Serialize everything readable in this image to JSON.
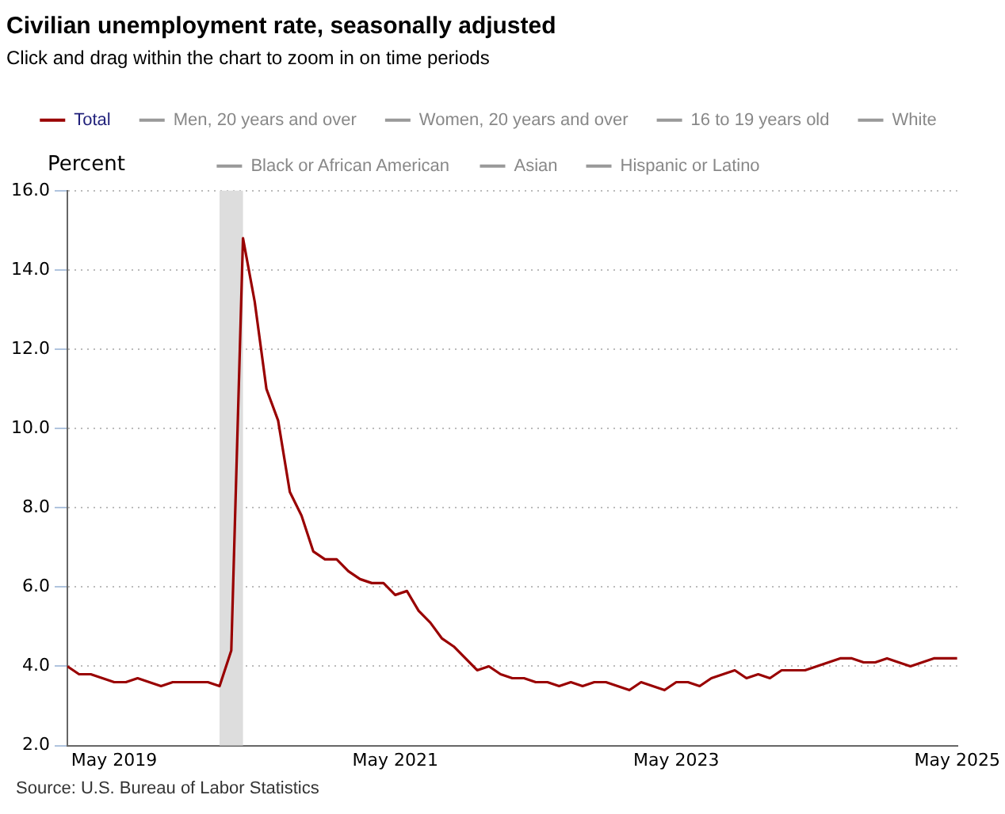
{
  "chart_data": {
    "type": "line",
    "title": "Civilian unemployment rate, seasonally adjusted",
    "subtitle": "Click and drag within the chart to zoom in on time periods",
    "ylabel": "Percent",
    "x": [
      "2019-01",
      "2019-02",
      "2019-03",
      "2019-04",
      "2019-05",
      "2019-06",
      "2019-07",
      "2019-08",
      "2019-09",
      "2019-10",
      "2019-11",
      "2019-12",
      "2020-01",
      "2020-02",
      "2020-03",
      "2020-04",
      "2020-05",
      "2020-06",
      "2020-07",
      "2020-08",
      "2020-09",
      "2020-10",
      "2020-11",
      "2020-12",
      "2021-01",
      "2021-02",
      "2021-03",
      "2021-04",
      "2021-05",
      "2021-06",
      "2021-07",
      "2021-08",
      "2021-09",
      "2021-10",
      "2021-11",
      "2021-12",
      "2022-01",
      "2022-02",
      "2022-03",
      "2022-04",
      "2022-05",
      "2022-06",
      "2022-07",
      "2022-08",
      "2022-09",
      "2022-10",
      "2022-11",
      "2022-12",
      "2023-01",
      "2023-02",
      "2023-03",
      "2023-04",
      "2023-05",
      "2023-06",
      "2023-07",
      "2023-08",
      "2023-09",
      "2023-10",
      "2023-11",
      "2023-12",
      "2024-01",
      "2024-02",
      "2024-03",
      "2024-04",
      "2024-05",
      "2024-06",
      "2024-07",
      "2024-08",
      "2024-09",
      "2024-10",
      "2024-11",
      "2024-12",
      "2025-01",
      "2025-02",
      "2025-03",
      "2025-04",
      "2025-05"
    ],
    "series": [
      {
        "name": "Total",
        "color": "#990000",
        "values": [
          4.0,
          3.8,
          3.8,
          3.7,
          3.6,
          3.6,
          3.7,
          3.6,
          3.5,
          3.6,
          3.6,
          3.6,
          3.6,
          3.5,
          4.4,
          14.8,
          13.2,
          11.0,
          10.2,
          8.4,
          7.8,
          6.9,
          6.7,
          6.7,
          6.4,
          6.2,
          6.1,
          6.1,
          5.8,
          5.9,
          5.4,
          5.1,
          4.7,
          4.5,
          4.2,
          3.9,
          4.0,
          3.8,
          3.7,
          3.7,
          3.6,
          3.6,
          3.5,
          3.6,
          3.5,
          3.6,
          3.6,
          3.5,
          3.4,
          3.6,
          3.5,
          3.4,
          3.6,
          3.6,
          3.5,
          3.7,
          3.8,
          3.9,
          3.7,
          3.8,
          3.7,
          3.9,
          3.9,
          3.9,
          4.0,
          4.1,
          4.2,
          4.2,
          4.1,
          4.1,
          4.2,
          4.1,
          4.0,
          4.1,
          4.2,
          4.2,
          4.2
        ]
      },
      {
        "name": "Men, 20 years and over",
        "color": "#999999",
        "values": [
          null,
          null,
          null,
          null,
          null,
          null,
          null,
          null,
          null,
          null,
          null,
          null,
          null,
          null,
          null,
          null,
          null,
          null,
          null,
          null,
          null,
          null,
          null,
          null,
          null,
          null,
          null,
          null,
          null,
          null,
          null,
          null,
          null,
          null,
          null,
          null,
          null,
          null,
          null,
          null,
          null,
          null,
          null,
          null,
          null,
          null,
          null,
          null,
          null,
          null,
          null,
          null,
          null,
          null,
          null,
          null,
          null,
          null,
          null,
          null,
          null,
          null,
          null,
          null,
          null,
          null,
          null,
          null,
          null,
          null,
          null,
          null,
          null,
          null,
          null,
          null,
          null
        ]
      },
      {
        "name": "Women, 20 years and over",
        "color": "#999999",
        "values": [
          null,
          null,
          null,
          null,
          null,
          null,
          null,
          null,
          null,
          null,
          null,
          null,
          null,
          null,
          null,
          null,
          null,
          null,
          null,
          null,
          null,
          null,
          null,
          null,
          null,
          null,
          null,
          null,
          null,
          null,
          null,
          null,
          null,
          null,
          null,
          null,
          null,
          null,
          null,
          null,
          null,
          null,
          null,
          null,
          null,
          null,
          null,
          null,
          null,
          null,
          null,
          null,
          null,
          null,
          null,
          null,
          null,
          null,
          null,
          null,
          null,
          null,
          null,
          null,
          null,
          null,
          null,
          null,
          null,
          null,
          null,
          null,
          null,
          null,
          null,
          null,
          null
        ]
      },
      {
        "name": "16 to 19 years old",
        "color": "#999999",
        "values": [
          null,
          null,
          null,
          null,
          null,
          null,
          null,
          null,
          null,
          null,
          null,
          null,
          null,
          null,
          null,
          null,
          null,
          null,
          null,
          null,
          null,
          null,
          null,
          null,
          null,
          null,
          null,
          null,
          null,
          null,
          null,
          null,
          null,
          null,
          null,
          null,
          null,
          null,
          null,
          null,
          null,
          null,
          null,
          null,
          null,
          null,
          null,
          null,
          null,
          null,
          null,
          null,
          null,
          null,
          null,
          null,
          null,
          null,
          null,
          null,
          null,
          null,
          null,
          null,
          null,
          null,
          null,
          null,
          null,
          null,
          null,
          null,
          null,
          null,
          null,
          null,
          null
        ]
      },
      {
        "name": "White",
        "color": "#999999",
        "values": [
          null,
          null,
          null,
          null,
          null,
          null,
          null,
          null,
          null,
          null,
          null,
          null,
          null,
          null,
          null,
          null,
          null,
          null,
          null,
          null,
          null,
          null,
          null,
          null,
          null,
          null,
          null,
          null,
          null,
          null,
          null,
          null,
          null,
          null,
          null,
          null,
          null,
          null,
          null,
          null,
          null,
          null,
          null,
          null,
          null,
          null,
          null,
          null,
          null,
          null,
          null,
          null,
          null,
          null,
          null,
          null,
          null,
          null,
          null,
          null,
          null,
          null,
          null,
          null,
          null,
          null,
          null,
          null,
          null,
          null,
          null,
          null,
          null,
          null,
          null,
          null,
          null
        ]
      },
      {
        "name": "Black or African American",
        "color": "#999999",
        "values": [
          null,
          null,
          null,
          null,
          null,
          null,
          null,
          null,
          null,
          null,
          null,
          null,
          null,
          null,
          null,
          null,
          null,
          null,
          null,
          null,
          null,
          null,
          null,
          null,
          null,
          null,
          null,
          null,
          null,
          null,
          null,
          null,
          null,
          null,
          null,
          null,
          null,
          null,
          null,
          null,
          null,
          null,
          null,
          null,
          null,
          null,
          null,
          null,
          null,
          null,
          null,
          null,
          null,
          null,
          null,
          null,
          null,
          null,
          null,
          null,
          null,
          null,
          null,
          null,
          null,
          null,
          null,
          null,
          null,
          null,
          null,
          null,
          null,
          null,
          null,
          null,
          null
        ]
      },
      {
        "name": "Asian",
        "color": "#999999",
        "values": [
          null,
          null,
          null,
          null,
          null,
          null,
          null,
          null,
          null,
          null,
          null,
          null,
          null,
          null,
          null,
          null,
          null,
          null,
          null,
          null,
          null,
          null,
          null,
          null,
          null,
          null,
          null,
          null,
          null,
          null,
          null,
          null,
          null,
          null,
          null,
          null,
          null,
          null,
          null,
          null,
          null,
          null,
          null,
          null,
          null,
          null,
          null,
          null,
          null,
          null,
          null,
          null,
          null,
          null,
          null,
          null,
          null,
          null,
          null,
          null,
          null,
          null,
          null,
          null,
          null,
          null,
          null,
          null,
          null,
          null,
          null,
          null,
          null,
          null,
          null,
          null,
          null
        ]
      },
      {
        "name": "Hispanic or Latino",
        "color": "#999999",
        "values": [
          null,
          null,
          null,
          null,
          null,
          null,
          null,
          null,
          null,
          null,
          null,
          null,
          null,
          null,
          null,
          null,
          null,
          null,
          null,
          null,
          null,
          null,
          null,
          null,
          null,
          null,
          null,
          null,
          null,
          null,
          null,
          null,
          null,
          null,
          null,
          null,
          null,
          null,
          null,
          null,
          null,
          null,
          null,
          null,
          null,
          null,
          null,
          null,
          null,
          null,
          null,
          null,
          null,
          null,
          null,
          null,
          null,
          null,
          null,
          null,
          null,
          null,
          null,
          null,
          null,
          null,
          null,
          null,
          null,
          null,
          null,
          null,
          null,
          null,
          null,
          null,
          null
        ]
      }
    ],
    "xlim": [
      "2019-01",
      "2025-05"
    ],
    "xticks": [
      {
        "value": "2019-05",
        "label": "May 2019"
      },
      {
        "value": "2021-05",
        "label": "May 2021"
      },
      {
        "value": "2023-05",
        "label": "May 2023"
      },
      {
        "value": "2025-05",
        "label": "May 2025"
      }
    ],
    "ylim": [
      2,
      16
    ],
    "yticks": [
      {
        "value": 2,
        "label": "2.0"
      },
      {
        "value": 4,
        "label": "4.0"
      },
      {
        "value": 6,
        "label": "6.0"
      },
      {
        "value": 8,
        "label": "8.0"
      },
      {
        "value": 10,
        "label": "10.0"
      },
      {
        "value": 12,
        "label": "12.0"
      },
      {
        "value": 14,
        "label": "14.0"
      },
      {
        "value": 16,
        "label": "16.0"
      }
    ],
    "grid": "y",
    "legend": "top",
    "marker": "none",
    "line_style": "solid",
    "bands": [
      {
        "axis": "x",
        "from": "2020-02",
        "to": "2020-04",
        "color": "#dddddd"
      }
    ],
    "annotations": [
      "Source: U.S. Bureau of Labor Statistics"
    ]
  }
}
